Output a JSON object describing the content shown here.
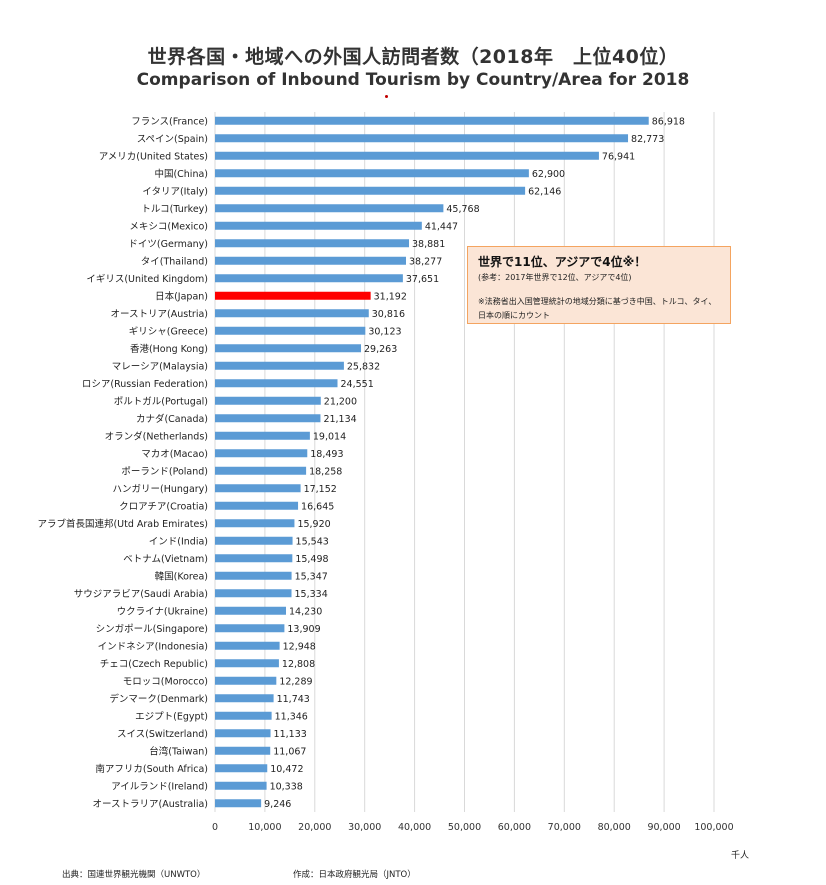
{
  "title_jp": "世界各国・地域への外国人訪問者数（2018年　上位40位）",
  "title_en": "Comparison of Inbound Tourism by Country/Area for 2018",
  "unit": "千人",
  "note": {
    "headline": "世界で11位、アジアで4位※！",
    "sub": "(参考：2017年世界で12位、アジアで4位)",
    "body": "※法務省出入国管理統計の地域分類に基づき中国、トルコ、タイ、日本の順にカウント"
  },
  "footer": {
    "source": "出典：国連世界観光機関（UNWTO）",
    "author": "作成：日本政府観光局（JNTO）"
  },
  "colors": {
    "bar": "#5b9bd5",
    "highlight": "#ff0000",
    "grid": "#d9d9d9"
  },
  "chart_data": {
    "type": "bar",
    "orientation": "horizontal",
    "highlight": "日本(Japan)",
    "xlim": [
      0,
      100000
    ],
    "xticks": [
      0,
      10000,
      20000,
      30000,
      40000,
      50000,
      60000,
      70000,
      80000,
      90000,
      100000
    ],
    "xtick_labels": [
      "0",
      "10,000",
      "20,000",
      "30,000",
      "40,000",
      "50,000",
      "60,000",
      "70,000",
      "80,000",
      "90,000",
      "100,000"
    ],
    "grid": true,
    "categories": [
      "フランス(France)",
      "スペイン(Spain)",
      "アメリカ(United States)",
      "中国(China)",
      "イタリア(Italy)",
      "トルコ(Turkey)",
      "メキシコ(Mexico)",
      "ドイツ(Germany)",
      "タイ(Thailand)",
      "イギリス(United Kingdom)",
      "日本(Japan)",
      "オーストリア(Austria)",
      "ギリシャ(Greece)",
      "香港(Hong Kong)",
      "マレーシア(Malaysia)",
      "ロシア(Russian Federation)",
      "ポルトガル(Portugal)",
      "カナダ(Canada)",
      "オランダ(Netherlands)",
      "マカオ(Macao)",
      "ポーランド(Poland)",
      "ハンガリー(Hungary)",
      "クロアチア(Croatia)",
      "アラブ首長国連邦(Utd Arab Emirates)",
      "インド(India)",
      "ベトナム(Vietnam)",
      "韓国(Korea)",
      "サウジアラビア(Saudi Arabia)",
      "ウクライナ(Ukraine)",
      "シンガポール(Singapore)",
      "インドネシア(Indonesia)",
      "チェコ(Czech Republic)",
      "モロッコ(Morocco)",
      "デンマーク(Denmark)",
      "エジプト(Egypt)",
      "スイス(Switzerland)",
      "台湾(Taiwan)",
      "南アフリカ(South Africa)",
      "アイルランド(Ireland)",
      "オーストラリア(Australia)"
    ],
    "values": [
      86918,
      82773,
      76941,
      62900,
      62146,
      45768,
      41447,
      38881,
      38277,
      37651,
      31192,
      30816,
      30123,
      29263,
      25832,
      24551,
      21200,
      21134,
      19014,
      18493,
      18258,
      17152,
      16645,
      15920,
      15543,
      15498,
      15347,
      15334,
      14230,
      13909,
      12948,
      12808,
      12289,
      11743,
      11346,
      11133,
      11067,
      10472,
      10338,
      9246
    ],
    "value_labels": [
      "86,918",
      "82,773",
      "76,941",
      "62,900",
      "62,146",
      "45,768",
      "41,447",
      "38,881",
      "38,277",
      "37,651",
      "31,192",
      "30,816",
      "30,123",
      "29,263",
      "25,832",
      "24,551",
      "21,200",
      "21,134",
      "19,014",
      "18,493",
      "18,258",
      "17,152",
      "16,645",
      "15,920",
      "15,543",
      "15,498",
      "15,347",
      "15,334",
      "14,230",
      "13,909",
      "12,948",
      "12,808",
      "12,289",
      "11,743",
      "11,346",
      "11,133",
      "11,067",
      "10,472",
      "10,338",
      "9,246"
    ]
  }
}
